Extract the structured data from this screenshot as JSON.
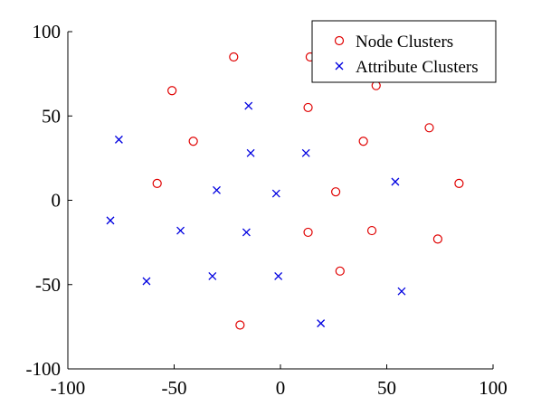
{
  "chart_data": {
    "type": "scatter",
    "xlim": [
      -100,
      100
    ],
    "ylim": [
      -100,
      100
    ],
    "xticks": [
      -100,
      -50,
      0,
      50,
      100
    ],
    "yticks": [
      -100,
      -50,
      0,
      50,
      100
    ],
    "xtick_labels": [
      "-100",
      "-50",
      "0",
      "50",
      "100"
    ],
    "ytick_labels": [
      "-100",
      "-50",
      "0",
      "50",
      "100"
    ],
    "grid": false,
    "legend_position": "top-right",
    "series": [
      {
        "name": "Node Clusters",
        "marker": "circle",
        "color": "#e00000",
        "points": [
          [
            -22,
            85
          ],
          [
            14,
            85
          ],
          [
            -51,
            65
          ],
          [
            45,
            68
          ],
          [
            13,
            55
          ],
          [
            70,
            43
          ],
          [
            -41,
            35
          ],
          [
            39,
            35
          ],
          [
            -58,
            10
          ],
          [
            26,
            5
          ],
          [
            84,
            10
          ],
          [
            13,
            -19
          ],
          [
            43,
            -18
          ],
          [
            74,
            -23
          ],
          [
            28,
            -42
          ],
          [
            -19,
            -74
          ]
        ]
      },
      {
        "name": "Attribute Clusters",
        "marker": "x",
        "color": "#0000e0",
        "points": [
          [
            -15,
            56
          ],
          [
            -76,
            36
          ],
          [
            -14,
            28
          ],
          [
            12,
            28
          ],
          [
            -30,
            6
          ],
          [
            -2,
            4
          ],
          [
            54,
            11
          ],
          [
            -80,
            -12
          ],
          [
            -47,
            -18
          ],
          [
            -16,
            -19
          ],
          [
            -63,
            -48
          ],
          [
            -32,
            -45
          ],
          [
            -1,
            -45
          ],
          [
            57,
            -54
          ],
          [
            19,
            -73
          ]
        ]
      }
    ]
  }
}
